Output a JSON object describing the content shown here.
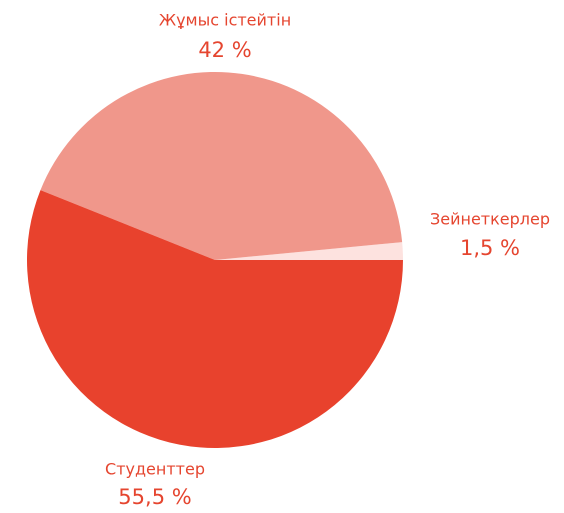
{
  "chart_data": {
    "type": "pie",
    "categories": [
      "Зейнеткерлер",
      "Жұмыс істейтін",
      "Студенттер"
    ],
    "values": [
      1.5,
      42,
      55.5
    ],
    "value_labels": [
      "1,5 %",
      "42 %",
      "55,5 %"
    ],
    "colors": [
      "#fde2df",
      "#f0978b",
      "#e8422d"
    ]
  }
}
